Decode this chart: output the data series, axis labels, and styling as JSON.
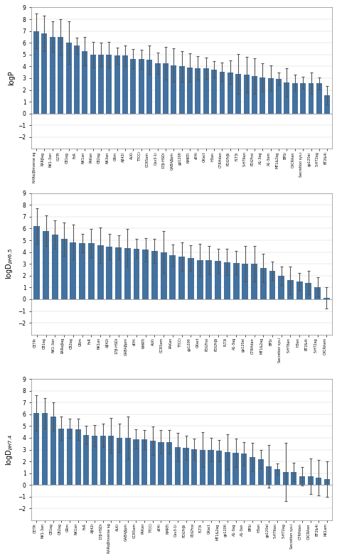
{
  "chart1": {
    "ylabel": "logP",
    "ylim": [
      -3,
      9
    ],
    "yticks": [
      -2,
      -1,
      0,
      1,
      2,
      3,
      4,
      5,
      6,
      7,
      8,
      9
    ],
    "categories": [
      "RARα/βinverse ag",
      "RARβag",
      "NK1-3an",
      "CLTPi",
      "CB1ag",
      "FxR",
      "NK1an",
      "PAKan",
      "CB2ag",
      "NK3an",
      "GRm",
      "Aβ42i",
      "ALKi",
      "TTCCi",
      "CCR5am",
      "Cav3-1i",
      "17β-HSDi",
      "GABAβpm",
      "gp120fi",
      "NMRTi",
      "sEHi",
      "GKact",
      "H3an",
      "CTRHdan",
      "PDGFrβi",
      "FLT3i",
      "5-HT6an",
      "PDGFroi",
      "A1-3ag",
      "A1-3am",
      "MT1&2ag",
      "BPSi",
      "CXCRAan",
      "Secretion sys.i",
      "gp120ai",
      "5-HT2ag",
      "BT2&4i"
    ],
    "values": [
      7.0,
      6.8,
      6.5,
      6.5,
      6.0,
      5.75,
      5.3,
      5.0,
      5.0,
      5.0,
      4.9,
      4.9,
      4.65,
      4.6,
      4.55,
      4.25,
      4.25,
      4.1,
      4.0,
      3.9,
      3.85,
      3.85,
      3.75,
      3.55,
      3.5,
      3.35,
      3.3,
      3.2,
      3.05,
      3.0,
      2.95,
      2.65,
      2.6,
      2.6,
      2.55,
      2.55,
      1.55
    ],
    "errors": [
      1.5,
      1.5,
      1.3,
      1.5,
      1.8,
      0.7,
      1.2,
      1.1,
      1.0,
      1.1,
      0.7,
      0.9,
      0.8,
      0.8,
      1.2,
      0.9,
      1.4,
      1.4,
      1.3,
      1.2,
      1.0,
      0.9,
      0.7,
      0.8,
      1.0,
      1.7,
      1.5,
      1.5,
      1.2,
      1.1,
      0.5,
      1.2,
      0.7,
      0.5,
      0.9,
      0.5,
      0.8
    ]
  },
  "chart2": {
    "ylabel": "logD_pH6.5",
    "ylim": [
      -3,
      9
    ],
    "yticks": [
      -2,
      -1,
      0,
      1,
      2,
      3,
      4,
      5,
      6,
      7,
      8,
      9
    ],
    "categories": [
      "CETPi",
      "CB1ag",
      "NK1-3an",
      "RARαβag",
      "CB2ag",
      "GRm",
      "FxR",
      "NK1an",
      "Aβ42i",
      "17β-HSDi",
      "GABAβpm",
      "sEHi",
      "NMRTi",
      "ALKi",
      "CCR5am",
      "PAKan",
      "TTCCi",
      "gp120fi",
      "GKact",
      "PDGFroi",
      "PDGFrβi",
      "FLT3i",
      "A1-3ag",
      "gp120ai",
      "CTRHdan",
      "MT1&2ag",
      "BPSi",
      "Secretion sys.i",
      "5-HT6an",
      "H3an",
      "BT2&4i",
      "5-HT2ag",
      "CXCRAam"
    ],
    "values": [
      6.2,
      5.8,
      5.5,
      5.1,
      4.85,
      4.75,
      4.75,
      4.6,
      4.45,
      4.4,
      4.35,
      4.3,
      4.2,
      4.1,
      4.0,
      3.75,
      3.6,
      3.5,
      3.3,
      3.3,
      3.25,
      3.15,
      3.1,
      3.0,
      3.0,
      2.65,
      2.4,
      2.0,
      1.6,
      1.5,
      1.4,
      1.05,
      0.1
    ],
    "errors": [
      1.5,
      1.3,
      1.2,
      1.4,
      1.5,
      0.8,
      1.2,
      1.5,
      1.1,
      1.0,
      1.6,
      0.8,
      1.0,
      1.0,
      1.8,
      0.9,
      1.2,
      1.1,
      1.4,
      1.2,
      1.0,
      1.1,
      1.0,
      1.5,
      1.5,
      1.2,
      0.8,
      0.8,
      1.2,
      0.7,
      1.0,
      0.8,
      0.9
    ]
  },
  "chart3": {
    "ylabel": "logD_pH7.4",
    "ylim": [
      -3,
      9
    ],
    "yticks": [
      -2,
      -1,
      0,
      1,
      2,
      3,
      4,
      5,
      6,
      7,
      8,
      9
    ],
    "categories": [
      "CETPi",
      "NK1-3an",
      "CB1ag",
      "CB2ag",
      "GRm",
      "NK1an",
      "FxR",
      "Aβ42i",
      "17β-HSDi",
      "RARαβinverse ag",
      "ALKi",
      "GABAβpm",
      "CCR5am",
      "PAKan",
      "TTCCi",
      "sEHi",
      "NMRTi",
      "Cav3-1i",
      "PDGFrβi",
      "PDGFroi",
      "FLT3i",
      "GKact",
      "MT1&2ag",
      "gp120fi",
      "A1-3ag",
      "A1-3an",
      "BPSi",
      "H3an",
      "gp120ai",
      "5-HT6an",
      "5-HT2ag",
      "Secretion sys.i",
      "CTRHdan",
      "CXCRAan",
      "BT2&4i",
      "NK1am"
    ],
    "values": [
      6.1,
      6.1,
      5.8,
      4.8,
      4.8,
      4.7,
      4.25,
      4.2,
      4.2,
      4.2,
      4.0,
      4.0,
      3.9,
      3.85,
      3.75,
      3.65,
      3.65,
      3.2,
      3.15,
      3.05,
      3.0,
      3.0,
      2.9,
      2.8,
      2.75,
      2.65,
      2.35,
      2.2,
      1.6,
      1.35,
      1.1,
      1.1,
      0.75,
      0.75,
      0.6,
      0.5
    ],
    "errors": [
      1.5,
      1.3,
      1.2,
      1.0,
      0.8,
      0.9,
      0.8,
      0.9,
      1.0,
      1.5,
      1.2,
      1.8,
      0.8,
      0.8,
      1.2,
      1.0,
      1.0,
      1.2,
      1.0,
      0.9,
      1.5,
      1.0,
      0.9,
      1.5,
      1.2,
      1.0,
      1.2,
      0.8,
      1.8,
      0.5,
      2.5,
      0.8,
      0.8,
      1.5,
      1.5,
      1.5
    ]
  },
  "bar_color": "#4472a0",
  "error_color": "#555555",
  "background_color": "#ffffff"
}
